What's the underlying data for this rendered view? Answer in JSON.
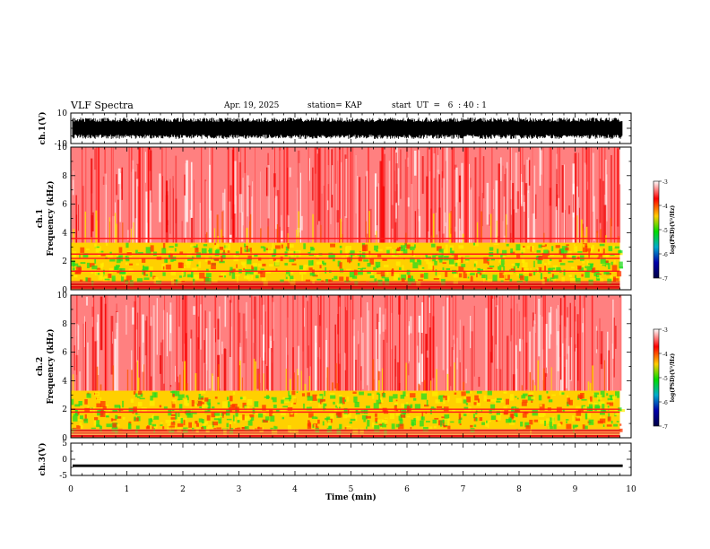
{
  "header": {
    "title": "VLF Spectra",
    "date": "Apr. 19, 2025",
    "station": "station= KAP",
    "start": "start  UT  =   6  : 40 : 1"
  },
  "colorbar": {
    "label": "log(PSD)(V²/Hz)",
    "ticks": [
      "-3",
      "-4",
      "-5",
      "-6",
      "-7"
    ],
    "colors": [
      "#ffffff",
      "#ff0000",
      "#ffcc00",
      "#00dd00",
      "#00aacc",
      "#0000aa",
      "#000044"
    ]
  },
  "chart_data": [
    {
      "type": "line",
      "panel": "ch1-waveform",
      "ylabel": "ch.1(V)",
      "ylim": [
        -10,
        10
      ],
      "ytick_labels": [
        "10",
        "-10"
      ],
      "xlim": [
        0,
        10
      ],
      "grid": false,
      "description_values": {
        "envelope_min": -7,
        "envelope_max": 7
      },
      "color": "#000000"
    },
    {
      "type": "heatmap",
      "panel": "ch1-spectrogram",
      "ylabel_top": "ch.1",
      "ylabel": "Frequency (kHz)",
      "ylim": [
        0,
        10
      ],
      "ytick_labels": [
        "0",
        "2",
        "4",
        "6",
        "8",
        "10"
      ],
      "xlim": [
        0,
        9.8
      ],
      "bands": [
        {
          "from": 0,
          "to": 0.6,
          "level": "red"
        },
        {
          "from": 0.6,
          "to": 3.3,
          "level": "green-yellow"
        },
        {
          "from": 3.3,
          "to": 10,
          "level": "red-white"
        }
      ],
      "lines_khz": [
        1.3,
        2.2,
        2.5,
        3.6
      ]
    },
    {
      "type": "heatmap",
      "panel": "ch2-spectrogram",
      "ylabel_top": "ch.2",
      "ylabel": "Frequency (kHz)",
      "ylim": [
        0,
        10
      ],
      "ytick_labels": [
        "0",
        "2",
        "4",
        "6",
        "8",
        "10"
      ],
      "xlim": [
        0,
        9.8
      ],
      "bands": [
        {
          "from": 0,
          "to": 0.6,
          "level": "red"
        },
        {
          "from": 0.6,
          "to": 3.3,
          "level": "green-yellow"
        },
        {
          "from": 3.3,
          "to": 10,
          "level": "red-white"
        }
      ],
      "lines_khz": [
        1.8,
        2.0
      ]
    },
    {
      "type": "line",
      "panel": "ch3-waveform",
      "ylabel": "ch.3(V)",
      "ylim": [
        -5,
        5
      ],
      "ytick_labels": [
        "5",
        "0",
        "-5"
      ],
      "xlim": [
        0,
        10
      ],
      "grid": false,
      "description_values": {
        "level": -2.0
      },
      "color": "#000000"
    }
  ],
  "xaxis": {
    "label": "Time (min)",
    "ticks": [
      "0",
      "1",
      "2",
      "3",
      "4",
      "5",
      "6",
      "7",
      "8",
      "9",
      "10"
    ],
    "range": [
      0,
      10
    ]
  }
}
